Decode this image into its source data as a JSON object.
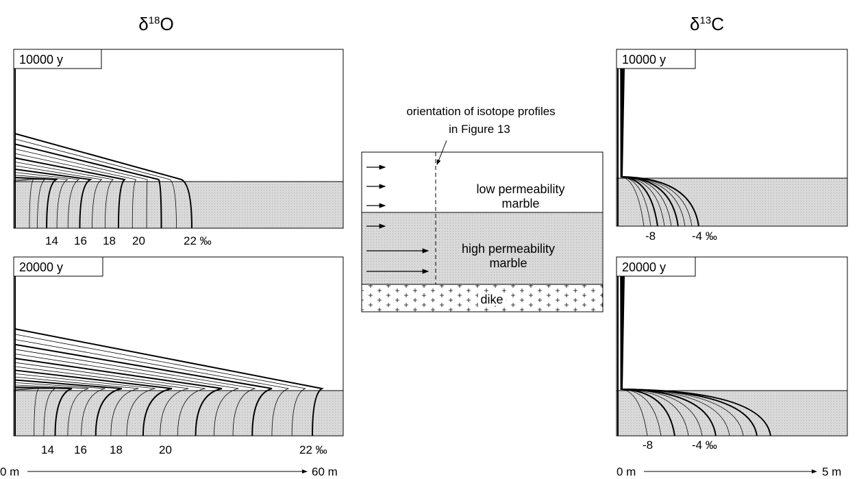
{
  "oxygen": {
    "title": {
      "symbol": "δ",
      "mass": "18",
      "element": "O"
    },
    "panels": [
      {
        "time": "10000 y",
        "contour_labels": [
          "14",
          "16",
          "18",
          "20",
          "22 ‰"
        ]
      },
      {
        "time": "20000 y",
        "contour_labels": [
          "14",
          "16",
          "18",
          "20",
          "22 ‰"
        ]
      }
    ],
    "axis": {
      "start": "0 m",
      "end": "60 m"
    }
  },
  "carbon": {
    "title": {
      "symbol": "δ",
      "mass": "13",
      "element": "C"
    },
    "panels": [
      {
        "time": "10000 y",
        "contour_labels": [
          "-8",
          "-4 ‰"
        ]
      },
      {
        "time": "20000 y",
        "contour_labels": [
          "-8",
          "-4 ‰"
        ]
      }
    ],
    "axis": {
      "start": "0 m",
      "end": "5 m"
    }
  },
  "schematic": {
    "caption": [
      "orientation of isotope profiles",
      "in Figure 13"
    ],
    "layers": [
      "low permeability marble",
      "high permeability marble",
      "dike"
    ]
  }
}
